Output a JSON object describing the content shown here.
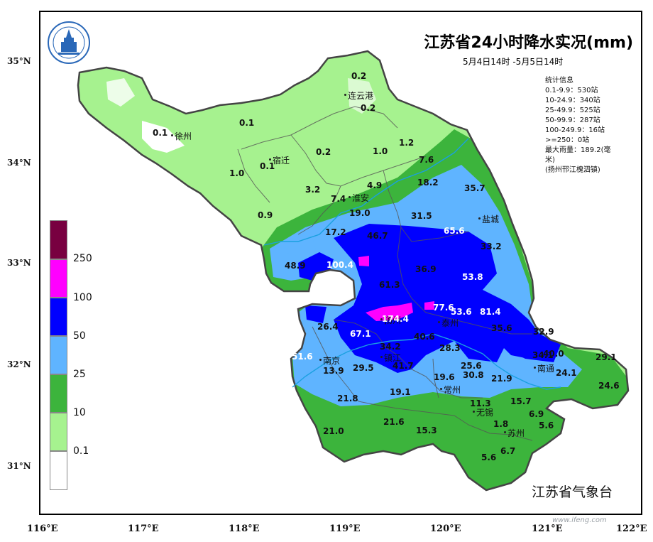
{
  "header": {
    "title": "江苏省24小时降水实况(mm)",
    "subtitle": "5月4日14时 -5月5日14时",
    "agency": "江苏省气象台"
  },
  "stats": {
    "heading": "统计信息",
    "lines": [
      "0.1-9.9：530站",
      "10-24.9：340站",
      "25-49.9：525站",
      "50-99.9：287站",
      "100-249.9：16站",
      ">=250：0站",
      "最大雨量：189.2(毫",
      "米)",
      "(扬州邗江槐泗镇)"
    ]
  },
  "axes": {
    "lat_labels": [
      "35°N",
      "34°N",
      "33°N",
      "32°N",
      "31°N"
    ],
    "lon_labels": [
      "116°E",
      "117°E",
      "118°E",
      "119°E",
      "120°E",
      "121°E",
      "122°E"
    ]
  },
  "legend": {
    "labels": [
      "250",
      "100",
      "50",
      "25",
      "10",
      "0.1"
    ],
    "colors": [
      "#780040",
      "#ff00ff",
      "#0000ff",
      "#5fb4ff",
      "#3cb43c",
      "#a6f28f",
      "#ffffff"
    ]
  },
  "cities": [
    {
      "name": "徐州"
    },
    {
      "name": "连云港"
    },
    {
      "name": "宿迁"
    },
    {
      "name": "淮安"
    },
    {
      "name": "盐城"
    },
    {
      "name": "扬州"
    },
    {
      "name": "泰州"
    },
    {
      "name": "南京"
    },
    {
      "name": "镇江"
    },
    {
      "name": "常州"
    },
    {
      "name": "南通"
    },
    {
      "name": "无锡"
    },
    {
      "name": "苏州"
    }
  ],
  "values": [
    "0.2",
    "0.2",
    "0.1",
    "0.1",
    "0.1",
    "0.2",
    "1.0",
    "1.2",
    "1.0",
    "7.6",
    "4.9",
    "3.2",
    "7.4",
    "18.2",
    "35.7",
    "0.9",
    "19.0",
    "31.5",
    "17.2",
    "46.7",
    "65.6",
    "33.2",
    "48.9",
    "100.4",
    "36.9",
    "53.8",
    "61.3",
    "77.6",
    "53.6",
    "81.4",
    "26.4",
    "174.4",
    "35.6",
    "32.9",
    "67.1",
    "40.6",
    "34.2",
    "28.3",
    "34.1",
    "40.0",
    "29.1",
    "51.6",
    "13.9",
    "29.5",
    "41.7",
    "19.6",
    "25.6",
    "30.8",
    "24.1",
    "21.9",
    "24.6",
    "19.1",
    "21.8",
    "11.3",
    "15.7",
    "6.9",
    "21.6",
    "15.3",
    "21.0",
    "1.8",
    "5.6",
    "6.7",
    "5.6"
  ]
}
